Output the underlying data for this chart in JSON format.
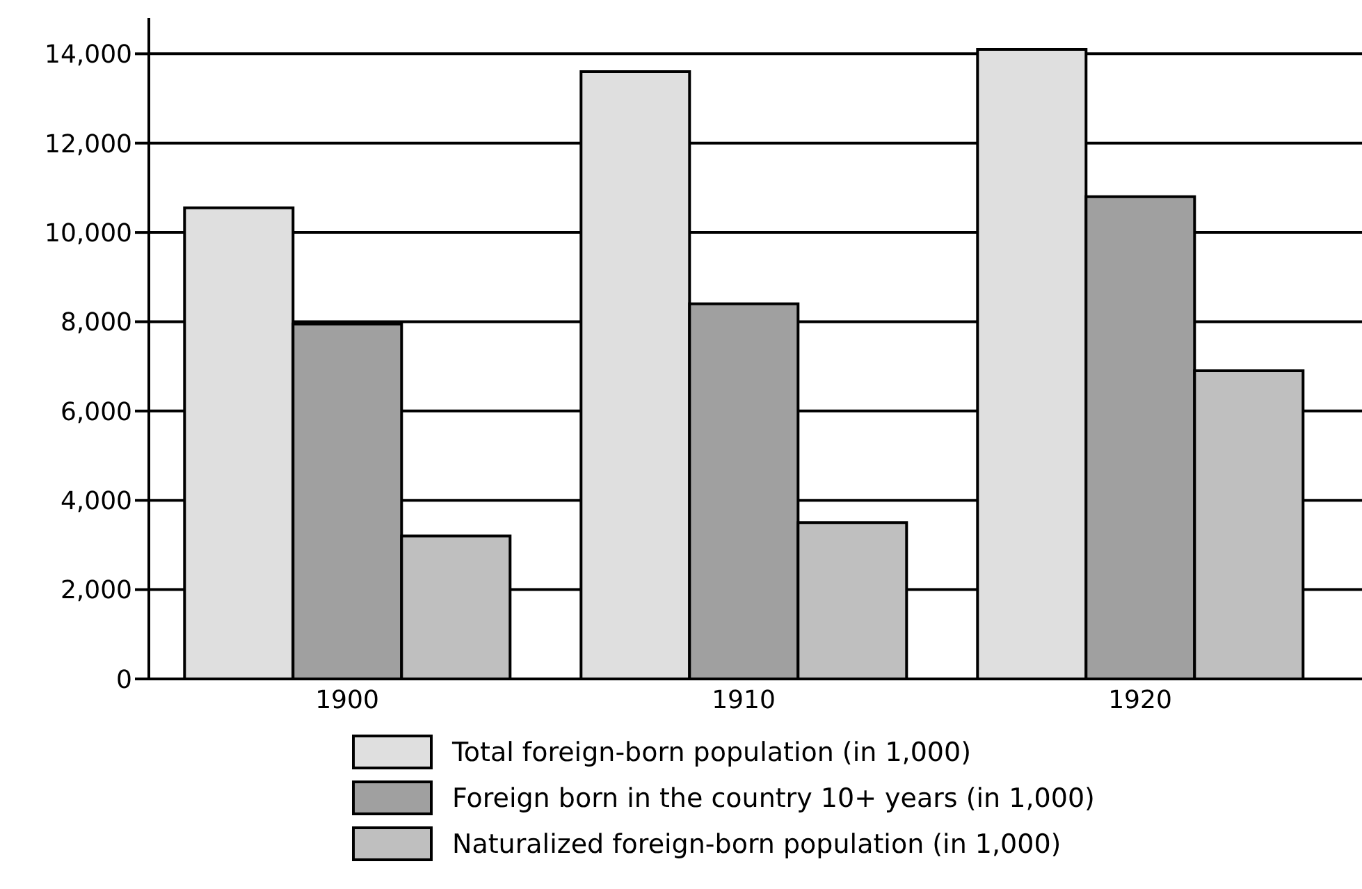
{
  "chart_data": {
    "type": "bar",
    "categories": [
      "1900",
      "1910",
      "1920"
    ],
    "series": [
      {
        "name": "Total foreign-born population (in 1,000)",
        "color": "#dfdfdf",
        "values": [
          10550,
          13600,
          14100
        ]
      },
      {
        "name": "Foreign born in the country 10+ years (in 1,000)",
        "color": "#a0a0a0",
        "values": [
          7950,
          8400,
          10800
        ]
      },
      {
        "name": "Naturalized foreign-born population (in 1,000)",
        "color": "#bfbfbf",
        "values": [
          3200,
          3500,
          6900
        ]
      }
    ],
    "ylim": [
      0,
      14800
    ],
    "yticks": [
      0,
      {
        "value": 2000,
        "label": "2,000"
      },
      {
        "value": 4000,
        "label": "4,000"
      },
      {
        "value": 6000,
        "label": "6,000"
      },
      {
        "value": 8000,
        "label": "8,000"
      },
      {
        "value": 10000,
        "label": "10,000"
      },
      {
        "value": 12000,
        "label": "12,000"
      },
      {
        "value": 14000,
        "label": "14,000"
      }
    ],
    "grid": "y",
    "legend": "bottom"
  }
}
